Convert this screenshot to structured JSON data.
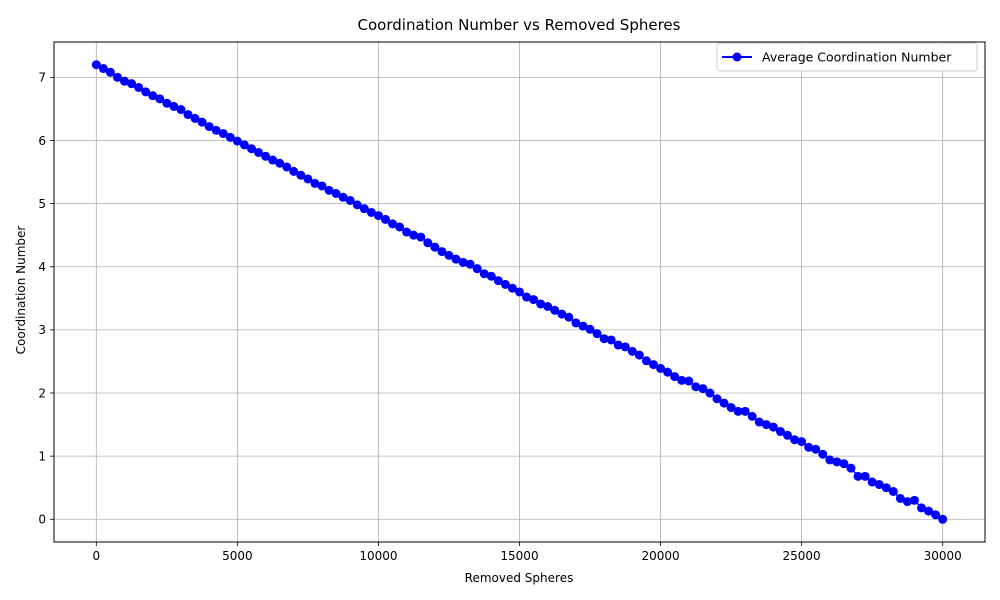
{
  "chart_data": {
    "type": "line",
    "title": "Coordination Number vs Removed Spheres",
    "xlabel": "Removed Spheres",
    "ylabel": "Coordination Number",
    "xlim": [
      -1500,
      31500
    ],
    "ylim": [
      -0.36,
      7.56
    ],
    "xticks": [
      0,
      5000,
      10000,
      15000,
      20000,
      25000,
      30000
    ],
    "xtick_labels": [
      "0",
      "5000",
      "10000",
      "15000",
      "20000",
      "25000",
      "30000"
    ],
    "yticks": [
      0,
      1,
      2,
      3,
      4,
      5,
      6,
      7
    ],
    "ytick_labels": [
      "0",
      "1",
      "2",
      "3",
      "4",
      "5",
      "6",
      "7"
    ],
    "grid": true,
    "legend_position": "top-right",
    "series": [
      {
        "name": "Average Coordination Number",
        "color": "#0000ff",
        "marker": "circle",
        "x": [
          0,
          250,
          500,
          750,
          1000,
          1250,
          1500,
          1750,
          2000,
          2250,
          2500,
          2750,
          3000,
          3250,
          3500,
          3750,
          4000,
          4250,
          4500,
          4750,
          5000,
          5250,
          5500,
          5750,
          6000,
          6250,
          6500,
          6750,
          7000,
          7250,
          7500,
          7750,
          8000,
          8250,
          8500,
          8750,
          9000,
          9250,
          9500,
          9750,
          10000,
          10250,
          10500,
          10750,
          11000,
          11250,
          11500,
          11750,
          12000,
          12250,
          12500,
          12750,
          13000,
          13250,
          13500,
          13750,
          14000,
          14250,
          14500,
          14750,
          15000,
          15250,
          15500,
          15750,
          16000,
          16250,
          16500,
          16750,
          17000,
          17250,
          17500,
          17750,
          18000,
          18250,
          18500,
          18750,
          19000,
          19250,
          19500,
          19750,
          20000,
          20250,
          20500,
          20750,
          21000,
          21250,
          21500,
          21750,
          22000,
          22250,
          22500,
          22750,
          23000,
          23250,
          23500,
          23750,
          24000,
          24250,
          24500,
          24750,
          25000,
          25250,
          25500,
          25750,
          26000,
          26250,
          26500,
          26750,
          27000,
          27250,
          27500,
          27750,
          28000,
          28250,
          28500,
          28750,
          29000,
          29250,
          29500,
          29750,
          30000
        ],
        "y": [
          7.2,
          7.14,
          7.08,
          7.0,
          6.94,
          6.9,
          6.84,
          6.77,
          6.71,
          6.66,
          6.59,
          6.54,
          6.49,
          6.41,
          6.35,
          6.29,
          6.22,
          6.16,
          6.11,
          6.05,
          5.99,
          5.93,
          5.87,
          5.81,
          5.75,
          5.69,
          5.64,
          5.58,
          5.51,
          5.45,
          5.39,
          5.32,
          5.28,
          5.21,
          5.16,
          5.1,
          5.05,
          4.98,
          4.92,
          4.86,
          4.81,
          4.75,
          4.68,
          4.63,
          4.55,
          4.5,
          4.47,
          4.38,
          4.31,
          4.24,
          4.18,
          4.12,
          4.07,
          4.04,
          3.97,
          3.89,
          3.85,
          3.78,
          3.72,
          3.66,
          3.6,
          3.52,
          3.48,
          3.41,
          3.37,
          3.31,
          3.25,
          3.2,
          3.11,
          3.06,
          3.01,
          2.94,
          2.86,
          2.84,
          2.76,
          2.73,
          2.66,
          2.6,
          2.51,
          2.45,
          2.39,
          2.33,
          2.26,
          2.2,
          2.19,
          2.1,
          2.07,
          2.0,
          1.91,
          1.84,
          1.77,
          1.71,
          1.71,
          1.63,
          1.54,
          1.5,
          1.46,
          1.39,
          1.33,
          1.26,
          1.23,
          1.14,
          1.11,
          1.03,
          0.94,
          0.91,
          0.88,
          0.81,
          0.68,
          0.68,
          0.59,
          0.55,
          0.5,
          0.44,
          0.33,
          0.28,
          0.3,
          0.18,
          0.13,
          0.07,
          0.0
        ]
      }
    ]
  }
}
